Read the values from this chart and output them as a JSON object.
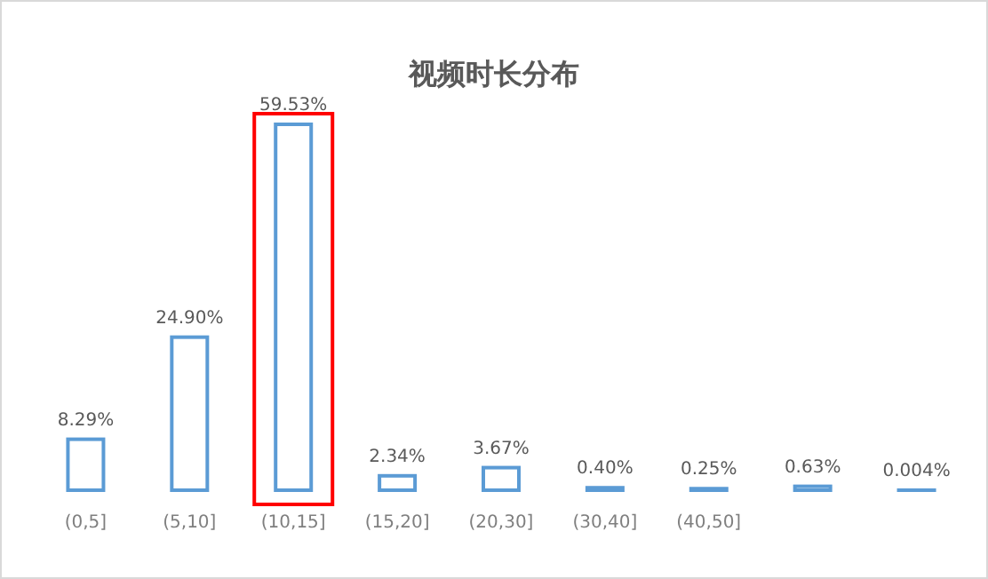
{
  "chart_data": {
    "type": "bar",
    "title": "视频时长分布",
    "categories": [
      "(0,5]",
      "(5,10]",
      "(10,15]",
      "(15,20]",
      "(20,30]",
      "(30,40]",
      "(40,50]",
      null,
      null
    ],
    "series": [
      {
        "color": "#5b9bd5",
        "values": [
          8.29,
          24.9,
          59.53,
          2.34,
          3.67,
          0.4,
          0.25,
          0.63,
          0.004
        ],
        "value_labels": [
          "8.29%",
          "24.90%",
          "59.53%",
          "2.34%",
          "3.67%",
          "0.40%",
          "0.25%",
          "0.63%",
          "0.004%"
        ]
      }
    ]
  }
}
